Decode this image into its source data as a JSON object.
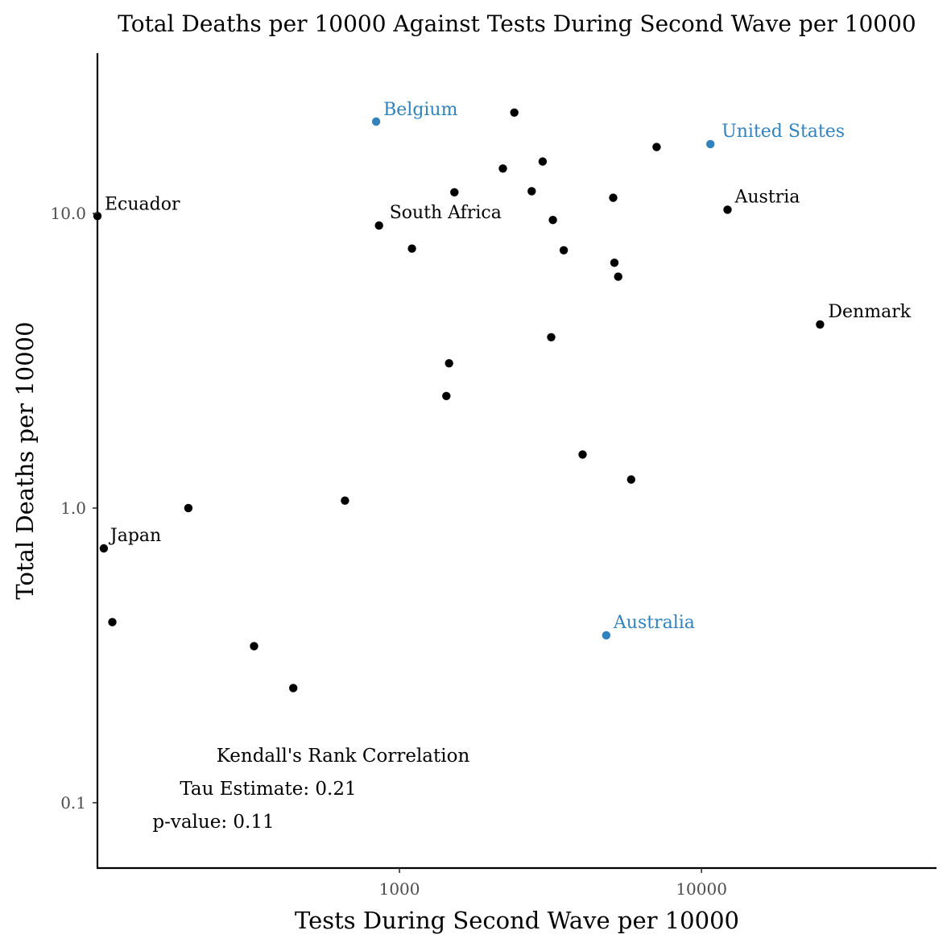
{
  "chart_data": {
    "type": "scatter",
    "title": "Total Deaths per 10000 Against Tests During Second Wave per 10000",
    "xlabel": "Tests During Second Wave per 10000",
    "ylabel": "Total Deaths per 10000",
    "x_scale": "log10",
    "y_scale": "log10",
    "xlim": [
      100,
      60000
    ],
    "ylim": [
      0.06,
      35
    ],
    "x_ticks": [
      {
        "value": 1000,
        "label": "1000"
      },
      {
        "value": 10000,
        "label": "10000"
      }
    ],
    "y_ticks": [
      {
        "value": 0.1,
        "label": "0.1"
      },
      {
        "value": 1,
        "label": "1.0"
      },
      {
        "value": 10,
        "label": "10.0"
      }
    ],
    "grid": false,
    "colors": {
      "default": "#000000",
      "highlight": "#3182bd",
      "axis": "#000000",
      "tick_label": "#4d4d4d"
    },
    "points": [
      {
        "x": 837,
        "y": 20.5,
        "label": "Belgium",
        "highlight": true
      },
      {
        "x": 10700,
        "y": 17.2,
        "label": "United States",
        "highlight": true
      },
      {
        "x": 4840,
        "y": 0.37,
        "label": "Australia",
        "highlight": true
      },
      {
        "x": 100,
        "y": 9.8,
        "label": "Ecuador",
        "highlight": false
      },
      {
        "x": 856,
        "y": 9.1,
        "label": "South Africa",
        "highlight": false
      },
      {
        "x": 12200,
        "y": 10.3,
        "label": "Austria",
        "highlight": false
      },
      {
        "x": 24700,
        "y": 4.2,
        "label": "Denmark",
        "highlight": false
      },
      {
        "x": 105,
        "y": 0.73,
        "label": "Japan",
        "highlight": false
      },
      {
        "x": 2400,
        "y": 22.0,
        "label": "",
        "highlight": false
      },
      {
        "x": 7100,
        "y": 16.8,
        "label": "",
        "highlight": false
      },
      {
        "x": 2980,
        "y": 15.0,
        "label": "",
        "highlight": false
      },
      {
        "x": 2200,
        "y": 14.2,
        "label": "",
        "highlight": false
      },
      {
        "x": 1520,
        "y": 11.8,
        "label": "",
        "highlight": false
      },
      {
        "x": 2740,
        "y": 11.9,
        "label": "",
        "highlight": false
      },
      {
        "x": 5100,
        "y": 11.3,
        "label": "",
        "highlight": false
      },
      {
        "x": 3220,
        "y": 9.5,
        "label": "",
        "highlight": false
      },
      {
        "x": 1100,
        "y": 7.6,
        "label": "",
        "highlight": false
      },
      {
        "x": 3500,
        "y": 7.5,
        "label": "",
        "highlight": false
      },
      {
        "x": 5150,
        "y": 6.8,
        "label": "",
        "highlight": false
      },
      {
        "x": 5300,
        "y": 6.1,
        "label": "",
        "highlight": false
      },
      {
        "x": 3180,
        "y": 3.8,
        "label": "",
        "highlight": false
      },
      {
        "x": 1460,
        "y": 3.1,
        "label": "",
        "highlight": false
      },
      {
        "x": 1430,
        "y": 2.4,
        "label": "",
        "highlight": false
      },
      {
        "x": 4040,
        "y": 1.52,
        "label": "",
        "highlight": false
      },
      {
        "x": 5850,
        "y": 1.25,
        "label": "",
        "highlight": false
      },
      {
        "x": 200,
        "y": 1.0,
        "label": "",
        "highlight": false
      },
      {
        "x": 660,
        "y": 1.06,
        "label": "",
        "highlight": false
      },
      {
        "x": 112,
        "y": 0.41,
        "label": "",
        "highlight": false
      },
      {
        "x": 330,
        "y": 0.34,
        "label": "",
        "highlight": false
      },
      {
        "x": 445,
        "y": 0.245,
        "label": "",
        "highlight": false
      }
    ],
    "annotations": [
      "Kendall's Rank Correlation",
      "Tau Estimate: 0.21",
      "p-value: 0.11"
    ]
  }
}
